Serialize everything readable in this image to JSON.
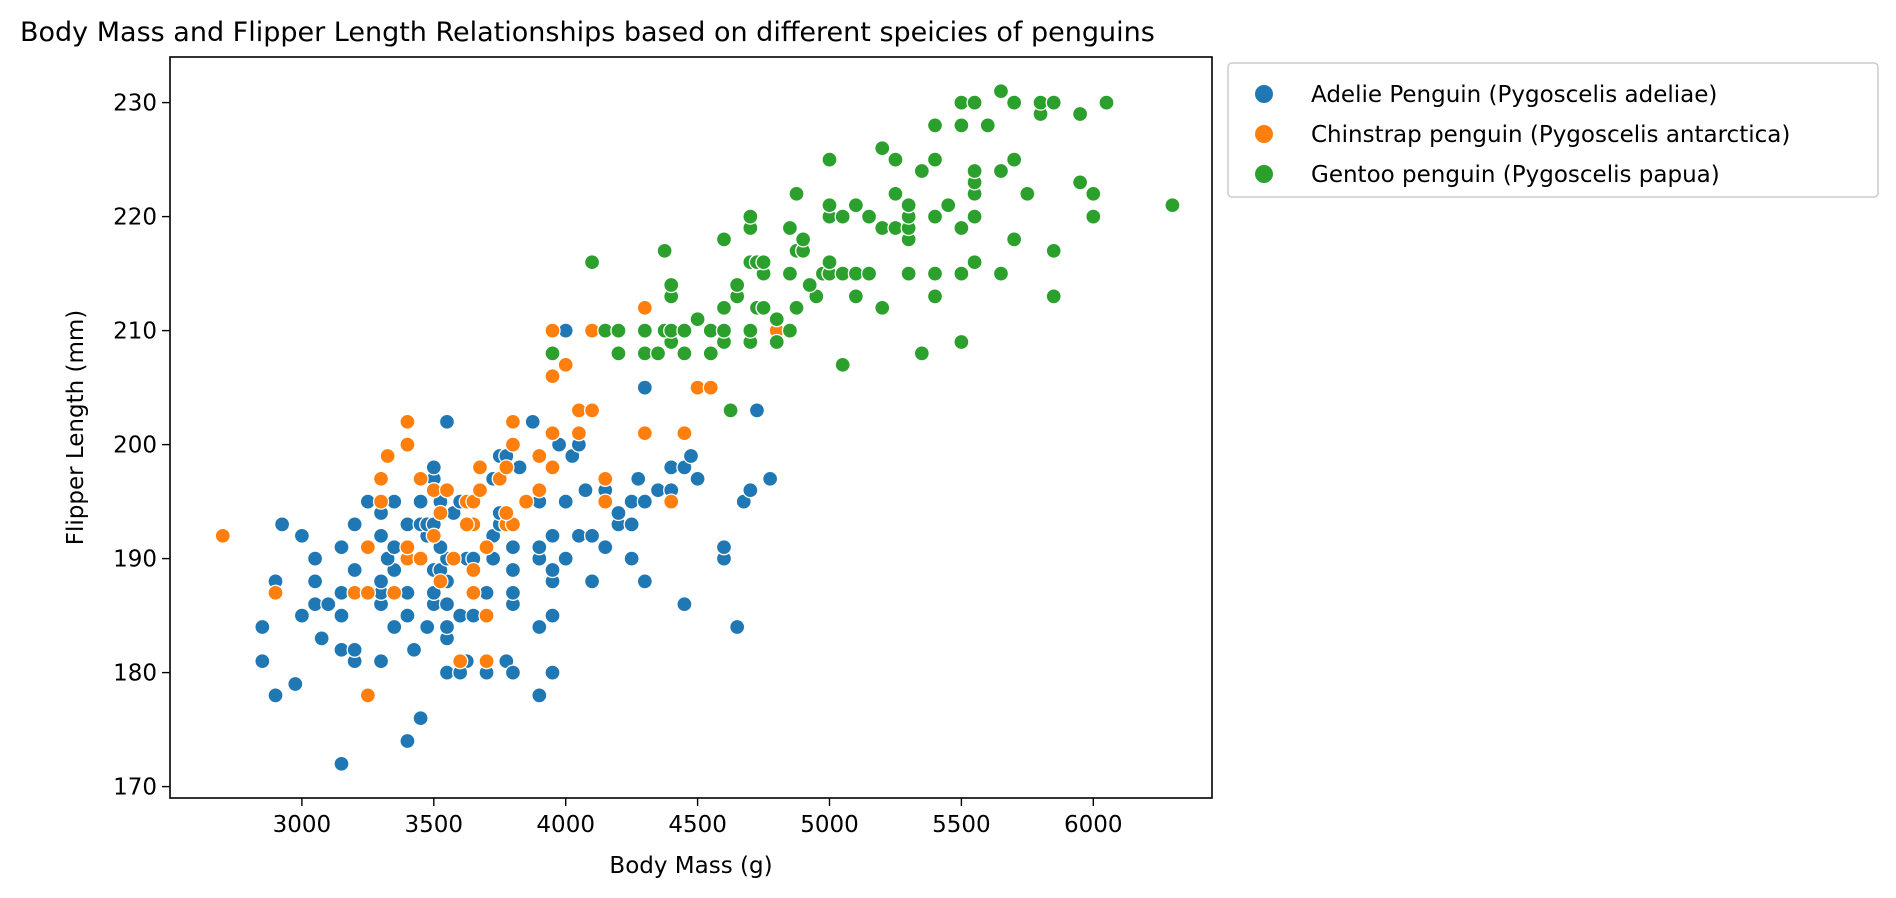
{
  "chart_data": {
    "type": "scatter",
    "title": "Body Mass and Flipper Length Relationships based on different speicies of penguins",
    "xlabel": "Body Mass (g)",
    "ylabel": "Flipper Length (mm)",
    "xlim": [
      2500,
      6450
    ],
    "ylim": [
      169,
      234
    ],
    "xticks": [
      3000,
      3500,
      4000,
      4500,
      5000,
      5500,
      6000
    ],
    "yticks": [
      170,
      180,
      190,
      200,
      210,
      220,
      230
    ],
    "grid": false,
    "legend_position": "outside-top-right",
    "series": [
      {
        "name": "Adelie Penguin (Pygoscelis adeliae)",
        "color": "#1f77b4",
        "points": [
          [
            3150,
            172
          ],
          [
            3400,
            174
          ],
          [
            3450,
            176
          ],
          [
            2900,
            178
          ],
          [
            3900,
            178
          ],
          [
            2975,
            179
          ],
          [
            2850,
            181
          ],
          [
            3200,
            181
          ],
          [
            3300,
            181
          ],
          [
            3625,
            181
          ],
          [
            3700,
            180
          ],
          [
            3775,
            181
          ],
          [
            3950,
            180
          ],
          [
            3550,
            180
          ],
          [
            3600,
            180
          ],
          [
            3800,
            180
          ],
          [
            3150,
            182
          ],
          [
            3425,
            182
          ],
          [
            3200,
            182
          ],
          [
            3075,
            183
          ],
          [
            3550,
            183
          ],
          [
            2850,
            184
          ],
          [
            3350,
            184
          ],
          [
            3475,
            184
          ],
          [
            3550,
            184
          ],
          [
            3900,
            184
          ],
          [
            4650,
            184
          ],
          [
            3000,
            185
          ],
          [
            3150,
            185
          ],
          [
            3400,
            185
          ],
          [
            3600,
            185
          ],
          [
            3650,
            185
          ],
          [
            3950,
            185
          ],
          [
            4450,
            186
          ],
          [
            3050,
            186
          ],
          [
            3100,
            186
          ],
          [
            3300,
            186
          ],
          [
            3500,
            186
          ],
          [
            3550,
            186
          ],
          [
            3800,
            186
          ],
          [
            3150,
            187
          ],
          [
            3300,
            187
          ],
          [
            3400,
            187
          ],
          [
            3500,
            187
          ],
          [
            3700,
            187
          ],
          [
            3800,
            187
          ],
          [
            3200,
            187
          ],
          [
            2900,
            188
          ],
          [
            3050,
            188
          ],
          [
            3300,
            188
          ],
          [
            3550,
            188
          ],
          [
            3950,
            188
          ],
          [
            4100,
            188
          ],
          [
            4300,
            188
          ],
          [
            3200,
            189
          ],
          [
            3350,
            189
          ],
          [
            3500,
            189
          ],
          [
            3800,
            189
          ],
          [
            3950,
            189
          ],
          [
            3525,
            189
          ],
          [
            3050,
            190
          ],
          [
            3325,
            190
          ],
          [
            3450,
            190
          ],
          [
            3550,
            190
          ],
          [
            3625,
            190
          ],
          [
            3650,
            190
          ],
          [
            3725,
            190
          ],
          [
            3900,
            190
          ],
          [
            4000,
            190
          ],
          [
            4250,
            190
          ],
          [
            4600,
            190
          ],
          [
            3150,
            191
          ],
          [
            3350,
            191
          ],
          [
            3525,
            191
          ],
          [
            3700,
            191
          ],
          [
            3800,
            191
          ],
          [
            3900,
            191
          ],
          [
            4150,
            191
          ],
          [
            4600,
            191
          ],
          [
            3000,
            192
          ],
          [
            3300,
            192
          ],
          [
            3475,
            192
          ],
          [
            3725,
            192
          ],
          [
            3950,
            192
          ],
          [
            4050,
            192
          ],
          [
            4100,
            192
          ],
          [
            2925,
            193
          ],
          [
            3200,
            193
          ],
          [
            3400,
            193
          ],
          [
            3450,
            193
          ],
          [
            3475,
            193
          ],
          [
            3500,
            193
          ],
          [
            3750,
            193
          ],
          [
            3800,
            193
          ],
          [
            4200,
            193
          ],
          [
            4250,
            193
          ],
          [
            3300,
            194
          ],
          [
            3525,
            194
          ],
          [
            3575,
            194
          ],
          [
            3750,
            194
          ],
          [
            4200,
            194
          ],
          [
            3250,
            195
          ],
          [
            3350,
            195
          ],
          [
            3450,
            195
          ],
          [
            3525,
            195
          ],
          [
            3600,
            195
          ],
          [
            3900,
            195
          ],
          [
            4000,
            195
          ],
          [
            4250,
            195
          ],
          [
            4300,
            195
          ],
          [
            4675,
            195
          ],
          [
            4150,
            196
          ],
          [
            3500,
            196
          ],
          [
            4350,
            196
          ],
          [
            4400,
            196
          ],
          [
            4075,
            196
          ],
          [
            4700,
            196
          ],
          [
            3500,
            197
          ],
          [
            3725,
            197
          ],
          [
            4275,
            197
          ],
          [
            4500,
            197
          ],
          [
            4775,
            197
          ],
          [
            3500,
            198
          ],
          [
            3775,
            198
          ],
          [
            3825,
            198
          ],
          [
            4400,
            198
          ],
          [
            4450,
            198
          ],
          [
            3750,
            199
          ],
          [
            3775,
            199
          ],
          [
            4025,
            199
          ],
          [
            4475,
            199
          ],
          [
            3975,
            200
          ],
          [
            4050,
            200
          ],
          [
            3950,
            201
          ],
          [
            3875,
            202
          ],
          [
            3550,
            202
          ],
          [
            4725,
            203
          ],
          [
            4300,
            205
          ],
          [
            4000,
            210
          ]
        ]
      },
      {
        "name": "Chinstrap penguin (Pygoscelis antarctica)",
        "color": "#ff7f0e",
        "points": [
          [
            2700,
            192
          ],
          [
            3250,
            178
          ],
          [
            3600,
            181
          ],
          [
            3700,
            181
          ],
          [
            3700,
            185
          ],
          [
            2900,
            187
          ],
          [
            3200,
            187
          ],
          [
            3250,
            187
          ],
          [
            3350,
            187
          ],
          [
            3650,
            187
          ],
          [
            3525,
            188
          ],
          [
            3650,
            189
          ],
          [
            3400,
            190
          ],
          [
            3450,
            190
          ],
          [
            3575,
            190
          ],
          [
            3250,
            191
          ],
          [
            3400,
            191
          ],
          [
            3700,
            191
          ],
          [
            3500,
            192
          ],
          [
            3650,
            193
          ],
          [
            3775,
            193
          ],
          [
            3800,
            193
          ],
          [
            3625,
            193
          ],
          [
            3775,
            194
          ],
          [
            3525,
            194
          ],
          [
            3300,
            195
          ],
          [
            3625,
            195
          ],
          [
            3650,
            195
          ],
          [
            3850,
            195
          ],
          [
            4150,
            195
          ],
          [
            4400,
            195
          ],
          [
            3500,
            196
          ],
          [
            3550,
            196
          ],
          [
            3675,
            196
          ],
          [
            3900,
            196
          ],
          [
            3300,
            197
          ],
          [
            3450,
            197
          ],
          [
            3750,
            197
          ],
          [
            4150,
            197
          ],
          [
            3675,
            198
          ],
          [
            3775,
            198
          ],
          [
            3950,
            198
          ],
          [
            3325,
            199
          ],
          [
            3900,
            199
          ],
          [
            3400,
            200
          ],
          [
            3800,
            200
          ],
          [
            3950,
            201
          ],
          [
            4050,
            201
          ],
          [
            4300,
            201
          ],
          [
            4450,
            201
          ],
          [
            3400,
            202
          ],
          [
            3800,
            202
          ],
          [
            4050,
            203
          ],
          [
            4100,
            203
          ],
          [
            4500,
            205
          ],
          [
            4550,
            205
          ],
          [
            3950,
            206
          ],
          [
            4000,
            207
          ],
          [
            3950,
            210
          ],
          [
            4100,
            210
          ],
          [
            4800,
            210
          ],
          [
            4300,
            212
          ]
        ]
      },
      {
        "name": "Gentoo penguin (Pygoscelis papua)",
        "color": "#2ca02c",
        "points": [
          [
            4625,
            203
          ],
          [
            5050,
            207
          ],
          [
            5350,
            208
          ],
          [
            3950,
            208
          ],
          [
            4200,
            208
          ],
          [
            4300,
            208
          ],
          [
            4350,
            208
          ],
          [
            4450,
            208
          ],
          [
            4550,
            208
          ],
          [
            5500,
            209
          ],
          [
            4400,
            209
          ],
          [
            4600,
            209
          ],
          [
            4700,
            209
          ],
          [
            4800,
            209
          ],
          [
            4150,
            210
          ],
          [
            4200,
            210
          ],
          [
            4300,
            210
          ],
          [
            4375,
            210
          ],
          [
            4400,
            210
          ],
          [
            4450,
            210
          ],
          [
            4550,
            210
          ],
          [
            4600,
            210
          ],
          [
            4700,
            210
          ],
          [
            4850,
            210
          ],
          [
            4200,
            210
          ],
          [
            4500,
            211
          ],
          [
            4800,
            211
          ],
          [
            4600,
            212
          ],
          [
            4725,
            212
          ],
          [
            4750,
            212
          ],
          [
            4875,
            212
          ],
          [
            5200,
            212
          ],
          [
            4400,
            213
          ],
          [
            4650,
            213
          ],
          [
            4950,
            213
          ],
          [
            5100,
            213
          ],
          [
            5400,
            213
          ],
          [
            5850,
            213
          ],
          [
            4400,
            214
          ],
          [
            4650,
            214
          ],
          [
            4925,
            214
          ],
          [
            4750,
            215
          ],
          [
            4850,
            215
          ],
          [
            4975,
            215
          ],
          [
            5000,
            215
          ],
          [
            5050,
            215
          ],
          [
            5100,
            215
          ],
          [
            5150,
            215
          ],
          [
            5300,
            215
          ],
          [
            5400,
            215
          ],
          [
            5500,
            215
          ],
          [
            5650,
            215
          ],
          [
            4100,
            216
          ],
          [
            4700,
            216
          ],
          [
            4725,
            216
          ],
          [
            4750,
            216
          ],
          [
            5000,
            216
          ],
          [
            5550,
            216
          ],
          [
            4375,
            217
          ],
          [
            4875,
            217
          ],
          [
            4900,
            217
          ],
          [
            5850,
            217
          ],
          [
            4600,
            218
          ],
          [
            4900,
            218
          ],
          [
            5300,
            218
          ],
          [
            5700,
            218
          ],
          [
            4700,
            219
          ],
          [
            4850,
            219
          ],
          [
            5200,
            219
          ],
          [
            5250,
            219
          ],
          [
            5300,
            219
          ],
          [
            5500,
            219
          ],
          [
            4700,
            220
          ],
          [
            5000,
            220
          ],
          [
            5050,
            220
          ],
          [
            5150,
            220
          ],
          [
            5300,
            220
          ],
          [
            5400,
            220
          ],
          [
            5550,
            220
          ],
          [
            6000,
            220
          ],
          [
            5000,
            221
          ],
          [
            5100,
            221
          ],
          [
            5300,
            221
          ],
          [
            5450,
            221
          ],
          [
            6300,
            221
          ],
          [
            4875,
            222
          ],
          [
            5250,
            222
          ],
          [
            5550,
            222
          ],
          [
            5750,
            222
          ],
          [
            6000,
            222
          ],
          [
            5550,
            223
          ],
          [
            5950,
            223
          ],
          [
            5350,
            224
          ],
          [
            5550,
            224
          ],
          [
            5650,
            224
          ],
          [
            5000,
            225
          ],
          [
            5250,
            225
          ],
          [
            5400,
            225
          ],
          [
            5700,
            225
          ],
          [
            5200,
            226
          ],
          [
            5400,
            228
          ],
          [
            5500,
            228
          ],
          [
            5600,
            228
          ],
          [
            5800,
            229
          ],
          [
            5950,
            229
          ],
          [
            5500,
            230
          ],
          [
            5550,
            230
          ],
          [
            5700,
            230
          ],
          [
            5800,
            230
          ],
          [
            5850,
            230
          ],
          [
            6050,
            230
          ],
          [
            5650,
            231
          ]
        ]
      }
    ]
  }
}
